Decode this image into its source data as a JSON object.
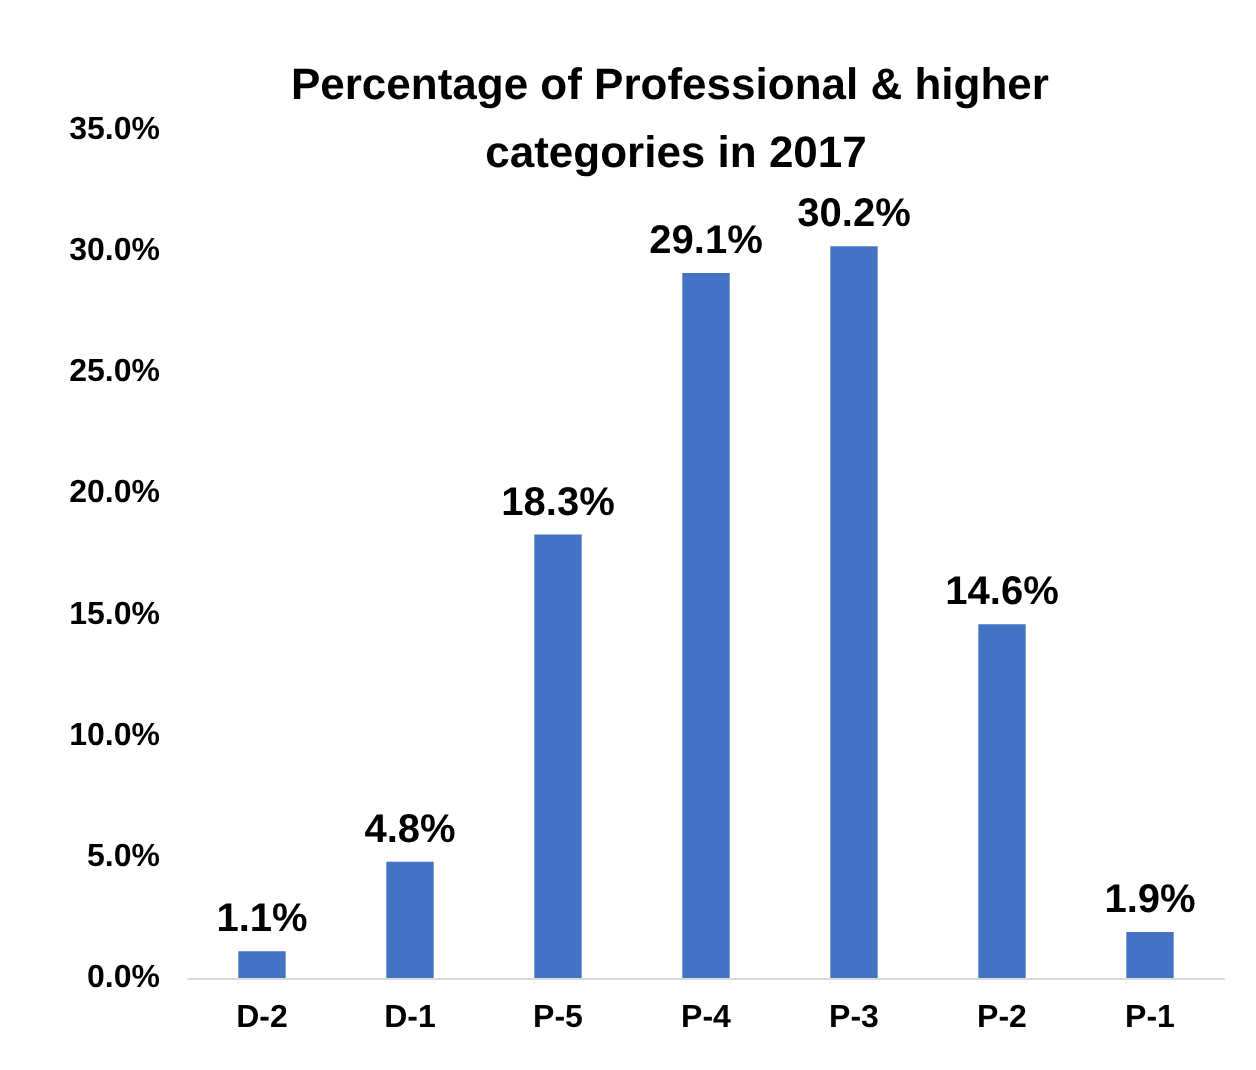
{
  "chart_data": {
    "type": "bar",
    "title": "Percentage of Professional & higher categories in 2017",
    "categories": [
      "D-2",
      "D-1",
      "P-5",
      "P-4",
      "P-3",
      "P-2",
      "P-1"
    ],
    "values": [
      1.1,
      4.8,
      18.3,
      29.1,
      30.2,
      14.6,
      1.9
    ],
    "value_labels": [
      "1.1%",
      "4.8%",
      "18.3%",
      "29.1%",
      "30.2%",
      "14.6%",
      "1.9%"
    ],
    "color": "#4472c4",
    "ylim": [
      0,
      35
    ],
    "yticks": [
      {
        "value": 0,
        "label": "0.0%"
      },
      {
        "value": 5,
        "label": "5.0%"
      },
      {
        "value": 10,
        "label": "10.0%"
      },
      {
        "value": 15,
        "label": "15.0%"
      },
      {
        "value": 20,
        "label": "20.0%"
      },
      {
        "value": 25,
        "label": "25.0%"
      },
      {
        "value": 30,
        "label": "30.0%"
      },
      {
        "value": 35,
        "label": "35.0%"
      }
    ],
    "grid": false
  }
}
